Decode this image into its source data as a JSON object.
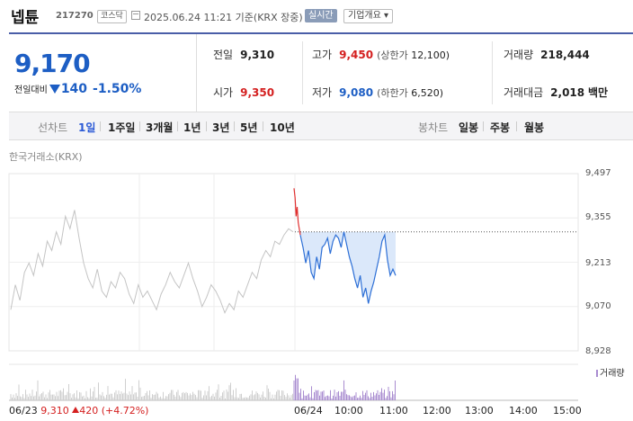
{
  "header": {
    "name": "넵튠",
    "code": "217270",
    "market": "코스닥",
    "datetime": "2025.06.24 11:21 기준(KRX 장중)",
    "realtime_label": "실시간",
    "summary_label": "기업개요"
  },
  "price": {
    "current": "9,170",
    "change_label": "전일대비",
    "change": "140",
    "change_pct": "-1.50%",
    "direction": "down"
  },
  "stats": {
    "prev_close_label": "전일",
    "prev_close": "9,310",
    "high_label": "고가",
    "high": "9,450",
    "upper_limit_label": "(상한가",
    "upper_limit": "12,100)",
    "volume_label": "거래량",
    "volume": "218,444",
    "open_label": "시가",
    "open": "9,350",
    "low_label": "저가",
    "low": "9,080",
    "lower_limit_label": "(하한가",
    "lower_limit": "6,520)",
    "trade_value_label": "거래대금",
    "trade_value": "2,018",
    "trade_value_unit": "백만"
  },
  "tabs": {
    "line_label": "선차트",
    "line_items": [
      "1일",
      "1주일",
      "3개월",
      "1년",
      "3년",
      "5년",
      "10년"
    ],
    "active": "1일",
    "candle_label": "봉차트",
    "candle_items": [
      "일봉",
      "주봉",
      "월봉"
    ]
  },
  "chart_source": "한국거래소(KRX)",
  "chart_data": {
    "type": "line",
    "y_ticks": [
      "9,497",
      "9,355",
      "9,213",
      "9,070",
      "8,928"
    ],
    "ylim": [
      8928,
      9497
    ],
    "prev_close": 9310,
    "x_ticks": [
      "06/24",
      "10:00",
      "11:00",
      "12:00",
      "13:00",
      "14:00",
      "15:00"
    ],
    "volume_label": "거래량",
    "previous_day": {
      "date": "06/23",
      "close": "9,310",
      "change": "420",
      "change_pct": "(+4.72%)"
    },
    "series": [
      {
        "values_prev_day": [
          9060,
          9140,
          9090,
          9180,
          9210,
          9170,
          9240,
          9200,
          9280,
          9250,
          9310,
          9270,
          9360,
          9320,
          9380,
          9290,
          9210,
          9160,
          9130,
          9190,
          9120,
          9100,
          9150,
          9130,
          9180,
          9160,
          9110,
          9080,
          9140,
          9100,
          9120,
          9090,
          9060,
          9110,
          9140,
          9180,
          9150,
          9130,
          9170,
          9210,
          9160,
          9120,
          9070,
          9100,
          9140,
          9120,
          9090,
          9050,
          9080,
          9060,
          9120,
          9100,
          9140,
          9180,
          9160,
          9220,
          9250,
          9230,
          9280,
          9270,
          9300,
          9320,
          9310
        ]
      },
      {
        "values_today_red": [
          9450,
          9420,
          9360,
          9390,
          9340,
          9320,
          9300
        ]
      },
      {
        "values_today": [
          9300,
          9260,
          9210,
          9250,
          9180,
          9160,
          9230,
          9190,
          9260,
          9270,
          9290,
          9240,
          9280,
          9300,
          9290,
          9260,
          9310,
          9270,
          9230,
          9200,
          9160,
          9130,
          9170,
          9100,
          9130,
          9080,
          9120,
          9150,
          9190,
          9230,
          9280,
          9300,
          9220,
          9170,
          9190,
          9170
        ]
      }
    ]
  }
}
